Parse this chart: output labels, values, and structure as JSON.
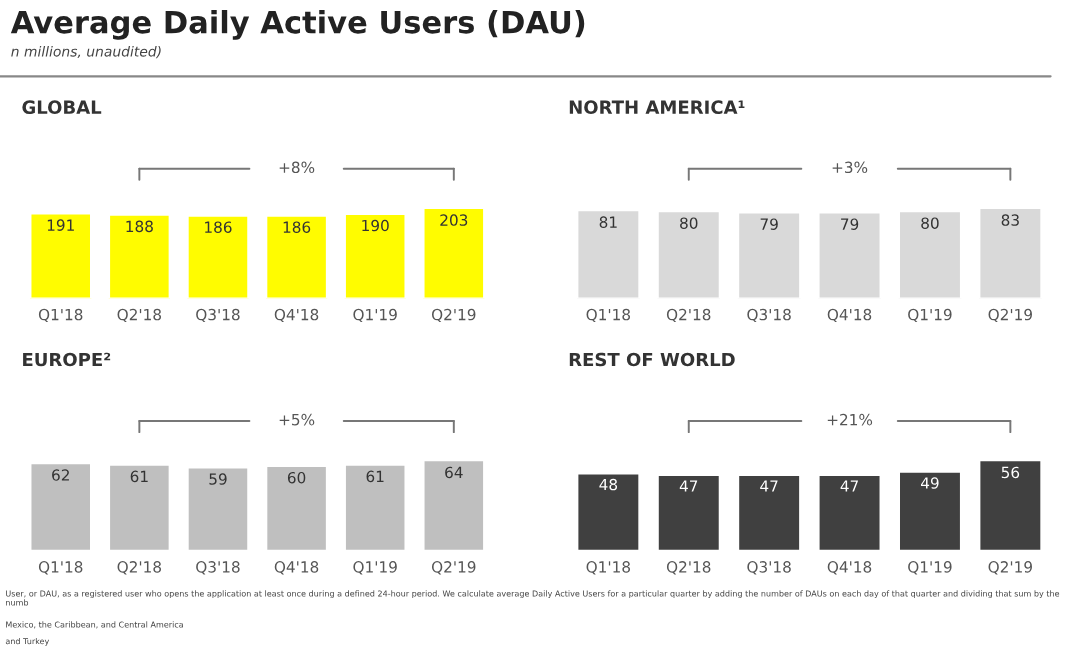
{
  "chart_data": [
    {
      "type": "other",
      "title": "Average Daily Active Users (DAU)",
      "subtitle": "n millions, unaudited)",
      "annotations": [
        "User, or DAU, as a registered user who opens the application at least once during a defined 24-hour period. We calculate average Daily Active Users for a particular quarter by adding the number of DAUs on each day of that quarter and dividing that sum by the numb",
        "Mexico, the Caribbean, and Central America",
        "and Turkey"
      ]
    },
    {
      "type": "bar",
      "title": "GLOBAL",
      "categories": [
        "Q1'18",
        "Q2'18",
        "Q3'18",
        "Q4'18",
        "Q1'19",
        "Q2'19"
      ],
      "values": [
        191,
        188,
        186,
        186,
        190,
        203
      ],
      "color": "#fffc00",
      "data_labels": true,
      "annotations": [
        "+8%"
      ]
    },
    {
      "type": "bar",
      "title": "NORTH AMERICA¹",
      "categories": [
        "Q1'18",
        "Q2'18",
        "Q3'18",
        "Q4'18",
        "Q1'19",
        "Q2'19"
      ],
      "values": [
        81,
        80,
        79,
        79,
        80,
        83
      ],
      "color": "#d9d9d9",
      "data_labels": true,
      "annotations": [
        "+3%"
      ]
    },
    {
      "type": "bar",
      "title": "EUROPE²",
      "categories": [
        "Q1'18",
        "Q2'18",
        "Q3'18",
        "Q4'18",
        "Q1'19",
        "Q2'19"
      ],
      "values": [
        62,
        61,
        59,
        60,
        61,
        64
      ],
      "color": "#bfbfbf",
      "data_labels": true,
      "annotations": [
        "+5%"
      ]
    },
    {
      "type": "bar",
      "title": "REST OF WORLD",
      "categories": [
        "Q1'18",
        "Q2'18",
        "Q3'18",
        "Q4'18",
        "Q1'19",
        "Q2'19"
      ],
      "values": [
        48,
        47,
        47,
        47,
        49,
        56
      ],
      "color": "#404040",
      "data_labels": true,
      "annotations": [
        "+21%"
      ]
    }
  ]
}
